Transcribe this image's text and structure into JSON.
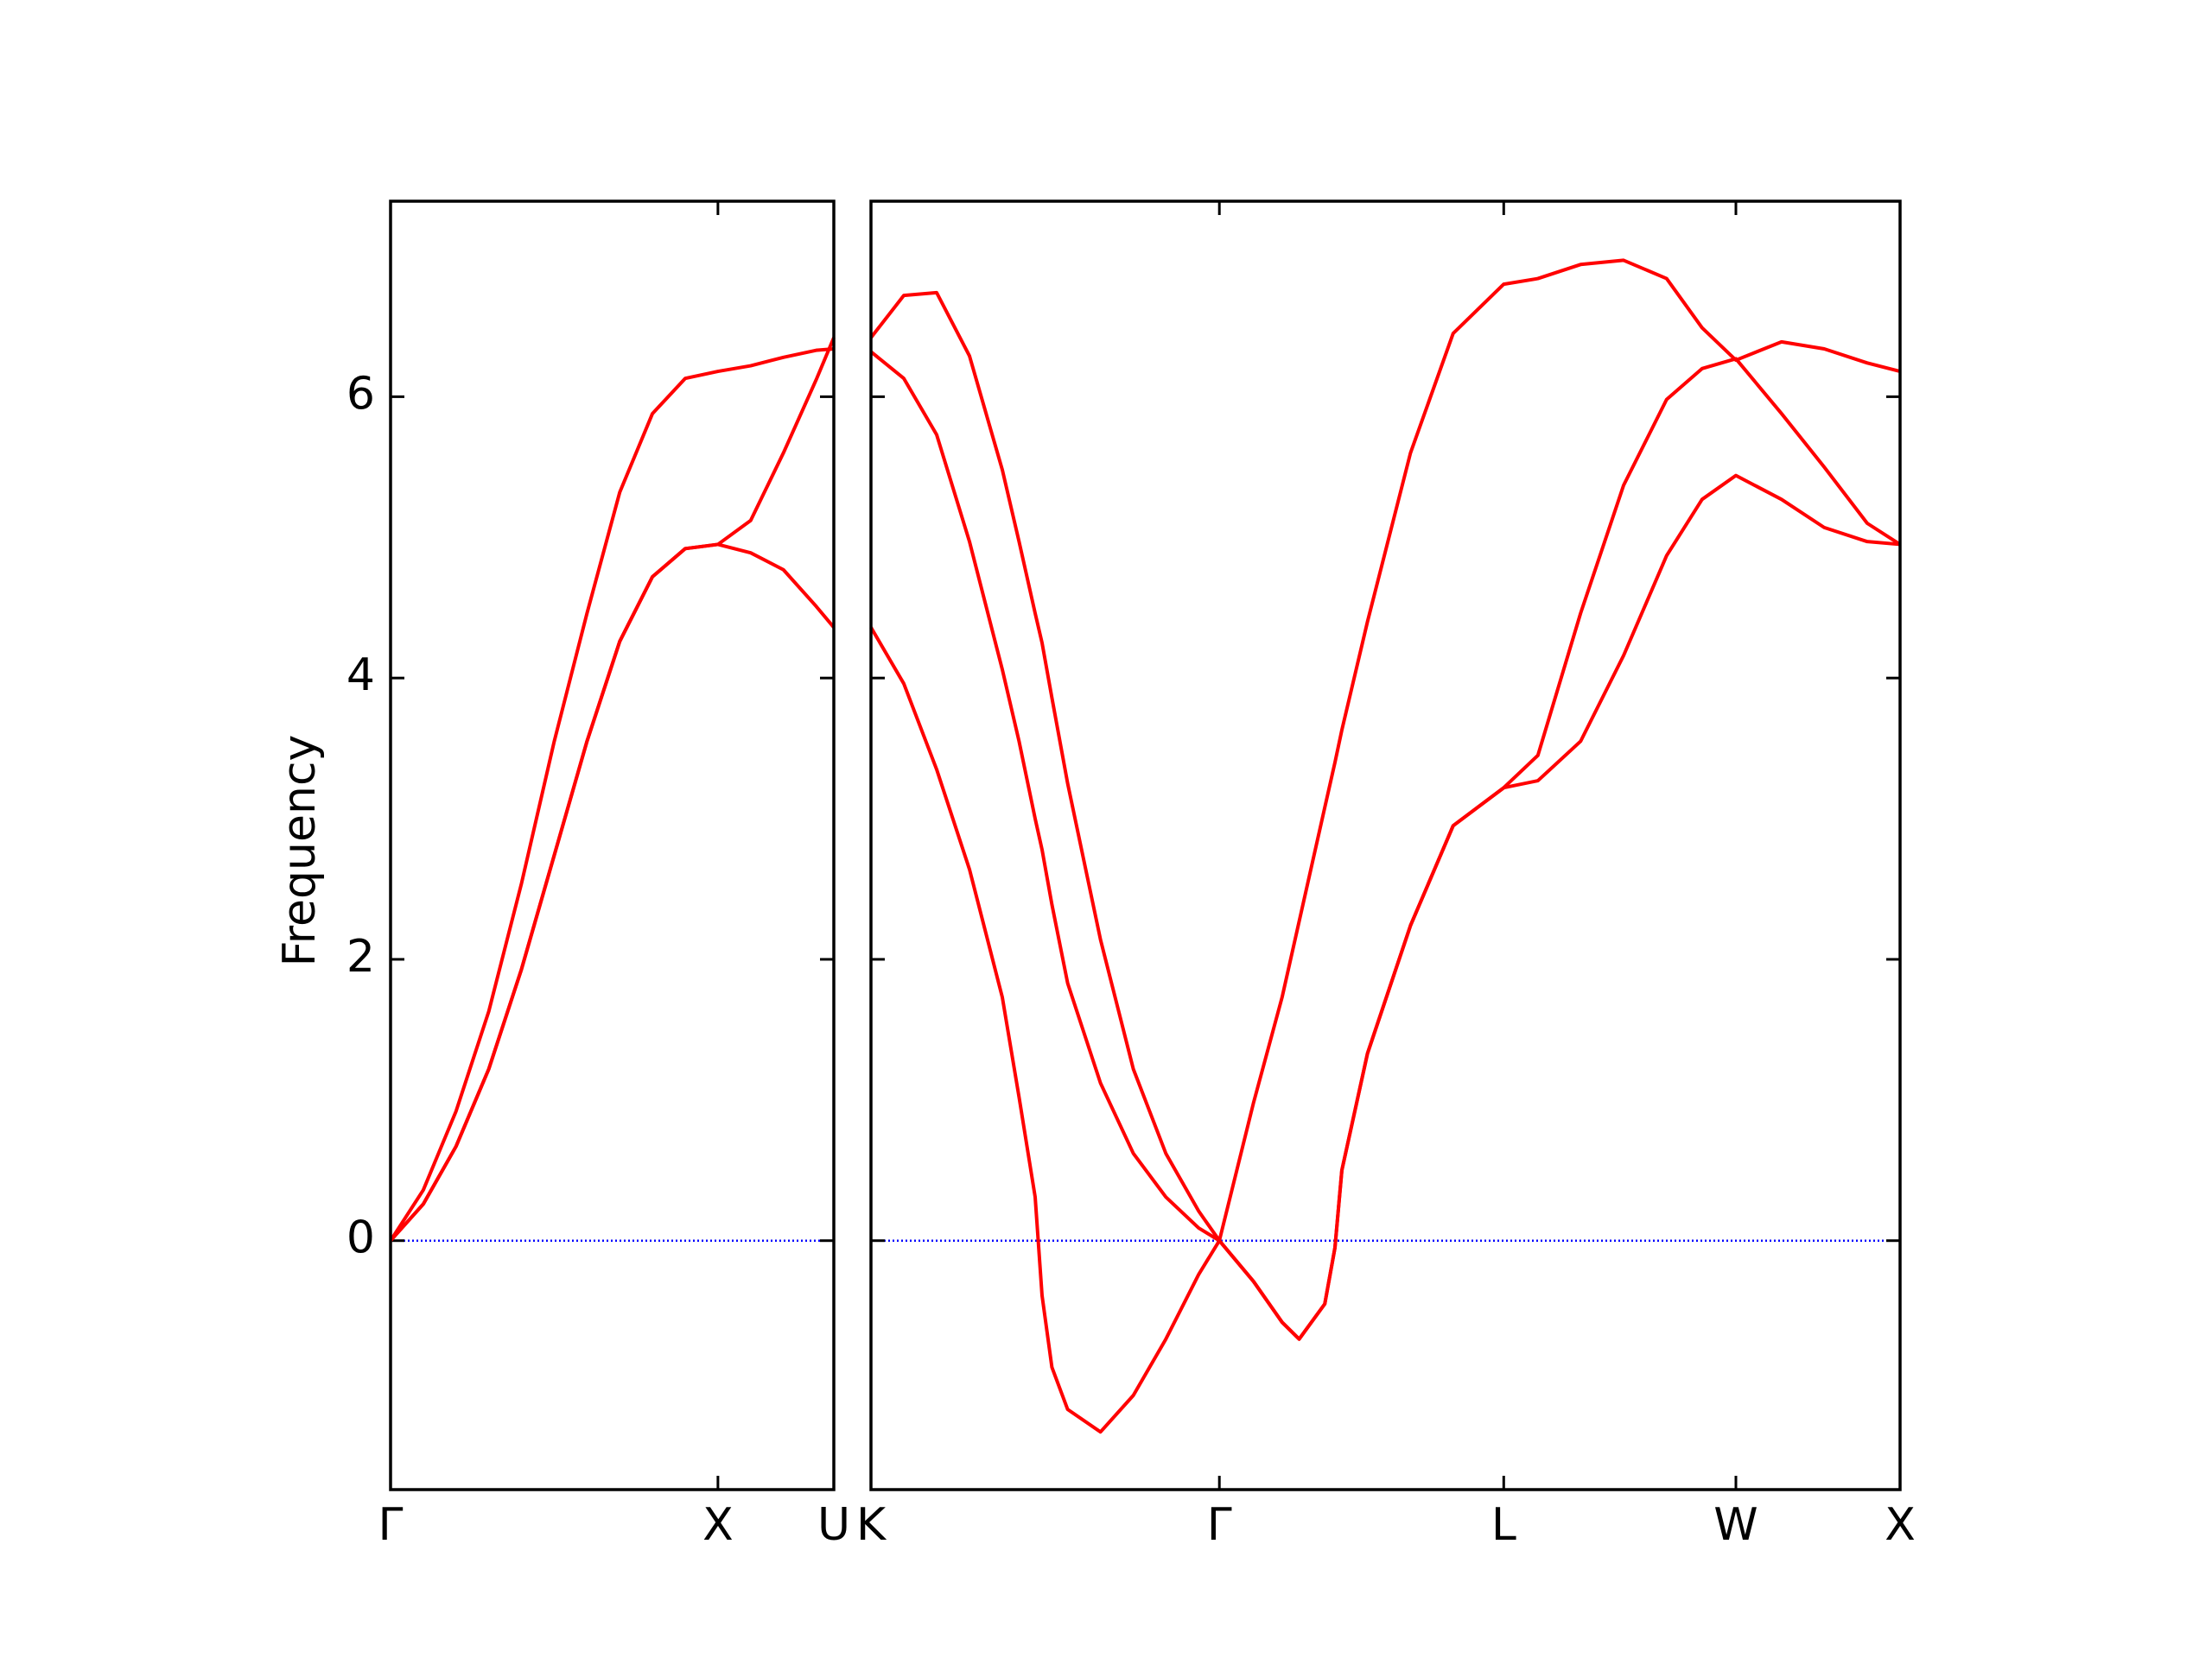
{
  "chart_data": [
    {
      "type": "line",
      "ylabel": "Frequency",
      "x": [
        0,
        0.1,
        0.2,
        0.3,
        0.4,
        0.5,
        0.6,
        0.7,
        0.8,
        0.9,
        1.0,
        1.1,
        1.2,
        1.3,
        1.354
      ],
      "series": [
        {
          "color": "#ff0000",
          "values": [
            0,
            0.26,
            0.67,
            1.22,
            1.93,
            2.74,
            3.55,
            4.26,
            4.72,
            4.92,
            4.95,
            4.89,
            4.77,
            4.51,
            4.36
          ]
        },
        {
          "color": "#ff0000",
          "values": [
            0,
            0.26,
            0.67,
            1.22,
            1.93,
            2.74,
            3.55,
            4.26,
            4.72,
            4.92,
            4.95,
            5.12,
            5.6,
            6.12,
            6.42
          ]
        },
        {
          "color": "#ff0000",
          "values": [
            0,
            0.36,
            0.92,
            1.63,
            2.54,
            3.55,
            4.46,
            5.32,
            5.88,
            6.13,
            6.18,
            6.22,
            6.28,
            6.33,
            6.34
          ]
        }
      ],
      "xlim": [
        0,
        1.354
      ],
      "xticks": [
        {
          "value": 0,
          "label": "Γ"
        },
        {
          "value": 1,
          "label": "X"
        },
        {
          "value": 1.354,
          "label": "U"
        }
      ],
      "ylim": [
        -1.77,
        7.39
      ],
      "yticks": [
        0,
        2,
        4,
        6
      ],
      "ytick_labels": true,
      "hline": 0,
      "hline_color": "#0000ff",
      "grid": false
    },
    {
      "type": "line",
      "x": [
        0,
        0.1,
        0.2,
        0.3,
        0.4,
        0.451,
        0.5,
        0.521,
        0.551,
        0.599,
        0.699,
        0.799,
        0.898,
        0.998,
        1.061,
        1.165,
        1.252,
        1.304,
        1.382,
        1.413,
        1.434,
        1.512,
        1.643,
        1.773,
        1.927,
        2.031,
        2.161,
        2.292,
        2.423,
        2.531,
        2.634,
        2.773,
        2.903,
        3.034,
        3.134
      ],
      "series": [
        {
          "color": "#ff0000",
          "values": [
            4.36,
            3.96,
            3.35,
            2.64,
            1.73,
            1.02,
            0.31,
            -0.39,
            -0.9,
            -1.2,
            -1.36,
            -1.1,
            -0.7,
            -0.24,
            0,
            -0.29,
            -0.58,
            -0.7,
            -0.45,
            -0.05,
            0.5,
            1.33,
            2.24,
            2.95,
            3.22,
            3.27,
            3.55,
            4.16,
            4.87,
            5.27,
            5.44,
            5.27,
            5.07,
            4.97,
            4.95
          ]
        },
        {
          "color": "#ff0000",
          "values": [
            6.32,
            6.13,
            5.73,
            4.97,
            4.06,
            3.55,
            3.0,
            2.78,
            2.39,
            1.83,
            1.12,
            0.62,
            0.31,
            0.09,
            0,
            -0.29,
            -0.58,
            -0.7,
            -0.45,
            -0.05,
            0.5,
            1.33,
            2.24,
            2.95,
            3.22,
            3.45,
            4.46,
            5.37,
            5.98,
            6.2,
            6.27,
            5.88,
            5.5,
            5.1,
            4.95
          ]
        },
        {
          "color": "#ff0000",
          "values": [
            6.42,
            6.72,
            6.74,
            6.29,
            5.48,
            4.97,
            4.46,
            4.25,
            3.86,
            3.25,
            2.14,
            1.22,
            0.62,
            0.21,
            0,
            0.98,
            1.73,
            2.27,
            3.08,
            3.4,
            3.63,
            4.4,
            5.6,
            6.45,
            6.8,
            6.84,
            6.94,
            6.97,
            6.84,
            6.49,
            6.26,
            6.39,
            6.34,
            6.24,
            6.18
          ]
        }
      ],
      "xlim": [
        0,
        3.134
      ],
      "xticks": [
        {
          "value": 0,
          "label": "K"
        },
        {
          "value": 1.061,
          "label": "Γ"
        },
        {
          "value": 1.927,
          "label": "L"
        },
        {
          "value": 2.634,
          "label": "W"
        },
        {
          "value": 3.134,
          "label": "X"
        }
      ],
      "ylim": [
        -1.77,
        7.39
      ],
      "yticks": [
        0,
        2,
        4,
        6
      ],
      "ytick_labels": false,
      "hline": 0,
      "hline_color": "#0000ff",
      "grid": false
    }
  ]
}
